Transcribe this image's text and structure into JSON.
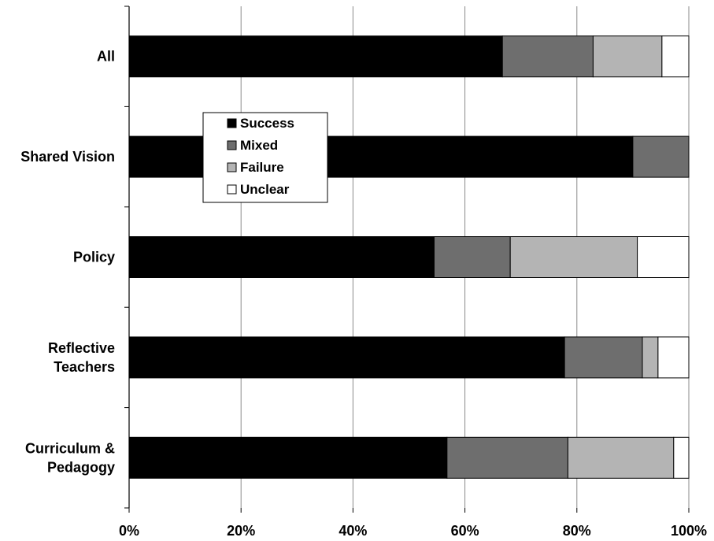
{
  "chart_data": {
    "type": "bar",
    "orientation": "horizontal",
    "stacked": true,
    "percent_stacked": true,
    "categories": [
      "All",
      "Shared Vision",
      "Policy",
      "Reflective Teachers",
      "Curriculum & Pedagogy"
    ],
    "category_lines": [
      [
        "All"
      ],
      [
        "Shared Vision"
      ],
      [
        "Policy"
      ],
      [
        "Reflective",
        "Teachers"
      ],
      [
        "Curriculum &",
        "Pedagogy"
      ]
    ],
    "series": [
      {
        "name": "Success",
        "color": "#000000",
        "values": [
          66.7,
          90.0,
          54.5,
          77.8,
          56.8
        ]
      },
      {
        "name": "Mixed",
        "color": "#6e6e6e",
        "values": [
          16.2,
          10.0,
          13.6,
          13.9,
          21.6
        ]
      },
      {
        "name": "Failure",
        "color": "#b4b4b4",
        "values": [
          12.3,
          0.0,
          22.7,
          2.8,
          18.9
        ]
      },
      {
        "name": "Unclear",
        "color": "#ffffff",
        "values": [
          4.8,
          0.0,
          9.2,
          5.5,
          2.7
        ]
      }
    ],
    "x_ticks": [
      "0%",
      "20%",
      "40%",
      "60%",
      "80%",
      "100%"
    ],
    "xlim": [
      0,
      100
    ],
    "grid": "vertical",
    "legend_position": "upper-left inside plot"
  }
}
